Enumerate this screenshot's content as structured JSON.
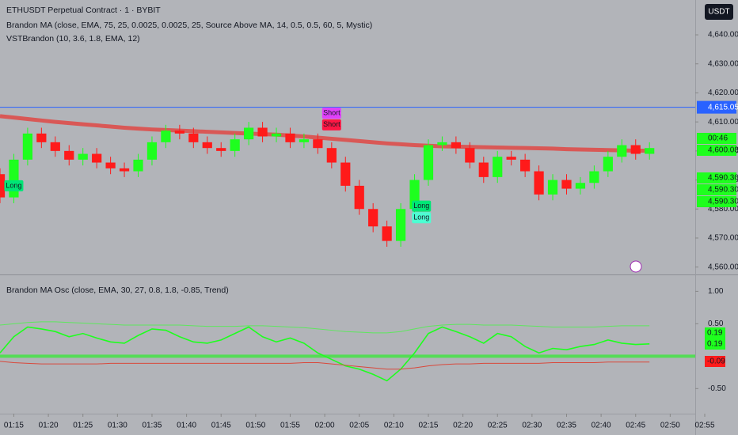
{
  "chart_data": [
    {
      "type": "candlestick",
      "title": "ETHUSDT Perpetual Contract · 1 · BYBIT",
      "subtitles": [
        "Brandon MA (close, EMA, 75, 25, 0.0025, 0.0025, 25, Source Above MA, 14, 0.5, 0.5, 60, 5, Mystic)",
        "VSTBrandon (10, 3.6, 1.8, EMA, 12)"
      ],
      "currency": "USDT",
      "x": [
        "01:13",
        "01:15",
        "01:17",
        "01:19",
        "01:21",
        "01:23",
        "01:25",
        "01:27",
        "01:29",
        "01:31",
        "01:33",
        "01:35",
        "01:37",
        "01:39",
        "01:41",
        "01:43",
        "01:45",
        "01:47",
        "01:49",
        "01:51",
        "01:53",
        "01:55",
        "01:57",
        "01:59",
        "02:01",
        "02:03",
        "02:05",
        "02:07",
        "02:09",
        "02:11",
        "02:13",
        "02:15",
        "02:17",
        "02:19",
        "02:21",
        "02:23",
        "02:25",
        "02:27",
        "02:29",
        "02:31",
        "02:33",
        "02:35",
        "02:37",
        "02:39",
        "02:41",
        "02:43",
        "02:45",
        "02:47"
      ],
      "open": [
        4592,
        4584,
        4597,
        4606,
        4603,
        4600,
        4597,
        4599,
        4596,
        4594,
        4593,
        4597,
        4603,
        4607,
        4606,
        4603,
        4601,
        4600,
        4604,
        4608,
        4605,
        4606,
        4603,
        4604,
        4601,
        4596,
        4588,
        4580,
        4574,
        4569,
        4580,
        4590,
        4602,
        4603,
        4601,
        4596,
        4591,
        4598,
        4597,
        4593,
        4585,
        4590,
        4587,
        4589,
        4593,
        4598,
        4602,
        4599
      ],
      "high": [
        4594,
        4599,
        4608,
        4608,
        4605,
        4602,
        4601,
        4601,
        4598,
        4596,
        4599,
        4605,
        4609,
        4609,
        4608,
        4605,
        4603,
        4606,
        4610,
        4610,
        4608,
        4608,
        4606,
        4606,
        4603,
        4598,
        4590,
        4582,
        4576,
        4582,
        4592,
        4604,
        4605,
        4605,
        4603,
        4598,
        4600,
        4600,
        4599,
        4595,
        4592,
        4592,
        4591,
        4595,
        4600,
        4604,
        4604,
        4603
      ],
      "low": [
        4582,
        4582,
        4595,
        4601,
        4598,
        4595,
        4595,
        4594,
        4592,
        4591,
        4591,
        4595,
        4601,
        4604,
        4601,
        4599,
        4598,
        4598,
        4602,
        4603,
        4603,
        4601,
        4601,
        4599,
        4594,
        4586,
        4578,
        4572,
        4567,
        4567,
        4578,
        4588,
        4600,
        4599,
        4594,
        4589,
        4589,
        4595,
        4591,
        4583,
        4583,
        4585,
        4585,
        4587,
        4591,
        4596,
        4597,
        4597
      ],
      "close": [
        4584,
        4597,
        4606,
        4603,
        4600,
        4597,
        4599,
        4596,
        4594,
        4593,
        4597,
        4603,
        4607,
        4606,
        4603,
        4601,
        4600,
        4604,
        4608,
        4605,
        4606,
        4603,
        4604,
        4601,
        4596,
        4588,
        4580,
        4574,
        4569,
        4580,
        4590,
        4602,
        4603,
        4601,
        4596,
        4591,
        4598,
        4597,
        4593,
        4585,
        4590,
        4587,
        4589,
        4593,
        4598,
        4602,
        4599,
        4601
      ],
      "up_color": "#1eff1e",
      "down_color": "#ff1a1a",
      "series": [
        {
          "color": "#e53935",
          "values": [
            4612,
            4611.5,
            4611,
            4610.5,
            4610,
            4609.6,
            4609.2,
            4608.8,
            4608.4,
            4608,
            4607.7,
            4607.4,
            4607.2,
            4607,
            4606.8,
            4606.6,
            4606.4,
            4606.2,
            4606,
            4605.8,
            4605.6,
            4605.3,
            4605,
            4604.6,
            4604.2,
            4603.8,
            4603.4,
            4603,
            4602.6,
            4602.3,
            4602,
            4601.8,
            4601.6,
            4601.5,
            4601.4,
            4601.3,
            4601.2,
            4601.1,
            4601,
            4600.9,
            4600.8,
            4600.6,
            4600.5,
            4600.4,
            4600.3,
            4600.2,
            4600.1,
            4600.08
          ]
        }
      ],
      "hline": {
        "value": 4615.05,
        "label": "4,615.05",
        "color": "#2962ff"
      },
      "price_labels": [
        "00:46",
        "4,600.08",
        "4,590.30",
        "4,590.30",
        "4,590.30"
      ],
      "annotations": [
        {
          "text": "Long",
          "x": "01:15",
          "y": 4588,
          "color": "#00e676"
        },
        {
          "text": "Short",
          "x": "02:01",
          "y": 4613,
          "color": "#e040fb"
        },
        {
          "text": "Short",
          "x": "02:01",
          "y": 4609,
          "color": "#ff1744"
        },
        {
          "text": "Long",
          "x": "02:14",
          "y": 4581,
          "color": "#00e676"
        },
        {
          "text": "Long",
          "x": "02:14",
          "y": 4577,
          "color": "#4dffd2"
        }
      ],
      "xlim": [
        "01:13",
        "02:55"
      ],
      "ylim": [
        4558,
        4652
      ],
      "yticks": [
        {
          "value": 4560,
          "label": "4,560.00"
        },
        {
          "value": 4570,
          "label": "4,570.00"
        },
        {
          "value": 4580,
          "label": "4,580.00"
        },
        {
          "value": 4590,
          "label": "4,590.00"
        },
        {
          "value": 4600,
          "label": "4,600.00"
        },
        {
          "value": 4610,
          "label": "4,610.00"
        },
        {
          "value": 4620,
          "label": "4,620.00"
        },
        {
          "value": 4630,
          "label": "4,630.00"
        },
        {
          "value": 4640,
          "label": "4,640.00"
        }
      ]
    },
    {
      "type": "line",
      "title": "Brandon MA Osc (close, EMA, 30, 27, 0.8, 1.8, -0.85, Trend)",
      "x": [
        "01:13",
        "01:15",
        "01:17",
        "01:19",
        "01:21",
        "01:23",
        "01:25",
        "01:27",
        "01:29",
        "01:31",
        "01:33",
        "01:35",
        "01:37",
        "01:39",
        "01:41",
        "01:43",
        "01:45",
        "01:47",
        "01:49",
        "01:51",
        "01:53",
        "01:55",
        "01:57",
        "01:59",
        "02:01",
        "02:03",
        "02:05",
        "02:07",
        "02:09",
        "02:11",
        "02:13",
        "02:15",
        "02:17",
        "02:19",
        "02:21",
        "02:23",
        "02:25",
        "02:27",
        "02:29",
        "02:31",
        "02:33",
        "02:35",
        "02:37",
        "02:39",
        "02:41",
        "02:43",
        "02:45",
        "02:47"
      ],
      "series": [
        {
          "color": "#1eff1e",
          "values": [
            0.05,
            0.3,
            0.45,
            0.42,
            0.38,
            0.3,
            0.35,
            0.28,
            0.22,
            0.2,
            0.32,
            0.42,
            0.4,
            0.3,
            0.22,
            0.2,
            0.25,
            0.35,
            0.45,
            0.3,
            0.22,
            0.28,
            0.2,
            0.05,
            -0.05,
            -0.15,
            -0.2,
            -0.28,
            -0.38,
            -0.2,
            0.05,
            0.35,
            0.45,
            0.38,
            0.3,
            0.2,
            0.35,
            0.3,
            0.15,
            0.05,
            0.12,
            0.1,
            0.15,
            0.18,
            0.25,
            0.2,
            0.18,
            0.19
          ]
        },
        {
          "color": "#5ee65e",
          "values": [
            0.48,
            0.5,
            0.52,
            0.53,
            0.53,
            0.52,
            0.51,
            0.5,
            0.49,
            0.48,
            0.48,
            0.48,
            0.48,
            0.48,
            0.47,
            0.46,
            0.46,
            0.46,
            0.47,
            0.47,
            0.46,
            0.45,
            0.44,
            0.42,
            0.4,
            0.38,
            0.37,
            0.36,
            0.36,
            0.38,
            0.42,
            0.46,
            0.48,
            0.49,
            0.49,
            0.48,
            0.48,
            0.48,
            0.47,
            0.46,
            0.45,
            0.45,
            0.45,
            0.45,
            0.46,
            0.47,
            0.47,
            0.47
          ]
        },
        {
          "color": "#d9483b",
          "values": [
            -0.08,
            -0.1,
            -0.11,
            -0.12,
            -0.12,
            -0.12,
            -0.12,
            -0.12,
            -0.11,
            -0.11,
            -0.11,
            -0.11,
            -0.11,
            -0.11,
            -0.11,
            -0.11,
            -0.11,
            -0.11,
            -0.11,
            -0.11,
            -0.11,
            -0.11,
            -0.1,
            -0.1,
            -0.12,
            -0.14,
            -0.16,
            -0.18,
            -0.2,
            -0.2,
            -0.18,
            -0.15,
            -0.13,
            -0.12,
            -0.12,
            -0.11,
            -0.11,
            -0.11,
            -0.11,
            -0.11,
            -0.1,
            -0.1,
            -0.1,
            -0.1,
            -0.09,
            -0.09,
            -0.09,
            -0.09
          ]
        }
      ],
      "value_boxes": [
        {
          "label": "0.19",
          "color": "#1eff1e"
        },
        {
          "label": "0.19",
          "color": "#1eff1e"
        },
        {
          "label": "-0.09",
          "color": "#ff1a1a"
        }
      ],
      "xlim": [
        "01:13",
        "02:55"
      ],
      "ylim": [
        -0.85,
        1.2
      ],
      "yticks": [
        {
          "value": 1,
          "label": "1.00"
        },
        {
          "value": 0.5,
          "label": "0.50"
        },
        {
          "value": -0.5,
          "label": "-0.50"
        }
      ],
      "xticks": [
        "01:15",
        "01:20",
        "01:25",
        "01:30",
        "01:35",
        "01:40",
        "01:45",
        "01:50",
        "01:55",
        "02:00",
        "02:05",
        "02:10",
        "02:15",
        "02:20",
        "02:25",
        "02:30",
        "02:35",
        "02:40",
        "02:45",
        "02:50",
        "02:55"
      ]
    }
  ]
}
